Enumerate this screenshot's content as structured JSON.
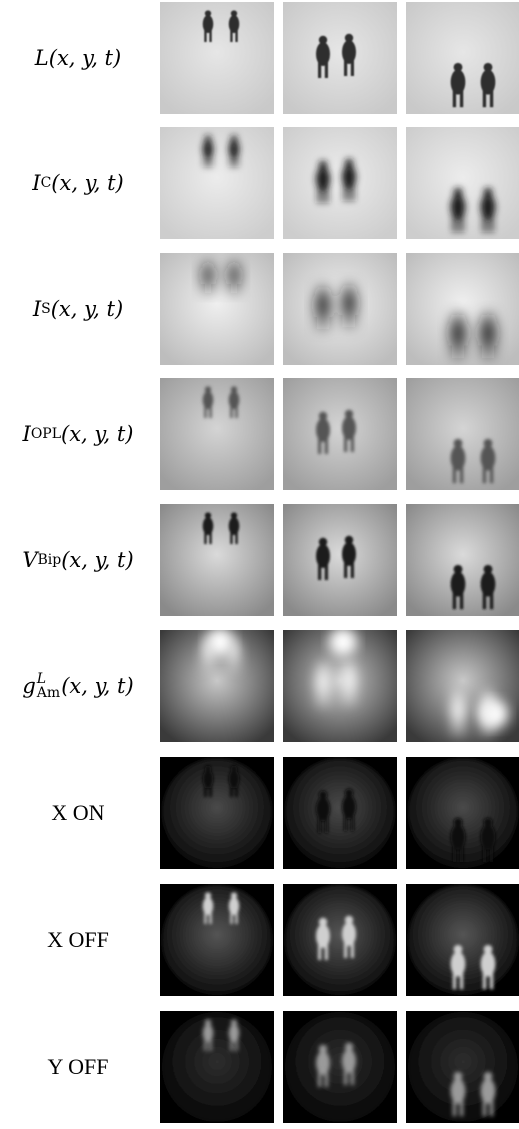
{
  "figure": {
    "rows": [
      {
        "id": "L",
        "label": {
          "base": "L",
          "sub": "",
          "sup": "",
          "args": "(x, y, t)",
          "plain": ""
        }
      },
      {
        "id": "IC",
        "label": {
          "base": "I",
          "sub": "C",
          "sup": "",
          "args": "(x, y, t)",
          "plain": ""
        }
      },
      {
        "id": "IS",
        "label": {
          "base": "I",
          "sub": "S",
          "sup": "",
          "args": "(x, y, t)",
          "plain": ""
        }
      },
      {
        "id": "IOPL",
        "label": {
          "base": "I",
          "sub": "OPL",
          "sup": "",
          "args": "(x, y, t)",
          "plain": ""
        }
      },
      {
        "id": "VBip",
        "label": {
          "base": "V",
          "sub": "Bip",
          "sup": "",
          "args": "(x, y, t)",
          "plain": ""
        }
      },
      {
        "id": "gAm",
        "label": {
          "base": "g",
          "sub": "Am",
          "sup": "L",
          "args": "(x, y, t)",
          "plain": ""
        }
      },
      {
        "id": "XON",
        "label": {
          "base": "",
          "sub": "",
          "sup": "",
          "args": "",
          "plain": "X ON"
        }
      },
      {
        "id": "XOFF",
        "label": {
          "base": "",
          "sub": "",
          "sup": "",
          "args": "",
          "plain": "X OFF"
        }
      },
      {
        "id": "YOFF",
        "label": {
          "base": "",
          "sub": "",
          "sup": "",
          "args": "",
          "plain": "Y OFF"
        }
      }
    ],
    "columns": 3,
    "colors": {
      "background": "#ffffff",
      "text": "#000000"
    }
  }
}
